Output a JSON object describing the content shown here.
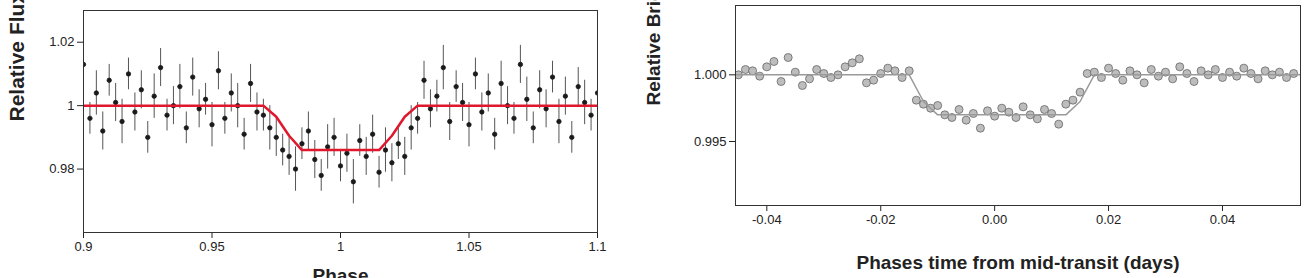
{
  "chart_data": [
    {
      "type": "scatter",
      "x_label": "Phase",
      "y_label": "Relative Flux",
      "xlim": [
        0.9,
        1.1
      ],
      "ylim": [
        0.96,
        1.03
      ],
      "xticks": [
        0.9,
        0.95,
        1,
        1.05,
        1.1
      ],
      "yticks": [
        0.98,
        1,
        1.02
      ],
      "series": [
        {
          "type": "scatter",
          "color": "#1a1a1a",
          "marker": "circle",
          "x": [
            0.9,
            0.9025,
            0.905,
            0.9075,
            0.91,
            0.9125,
            0.915,
            0.9175,
            0.92,
            0.9225,
            0.925,
            0.9275,
            0.93,
            0.9325,
            0.935,
            0.9375,
            0.94,
            0.9425,
            0.945,
            0.9475,
            0.95,
            0.9525,
            0.955,
            0.9575,
            0.96,
            0.9625,
            0.965,
            0.9675,
            0.97,
            0.9725,
            0.975,
            0.9775,
            0.98,
            0.9825,
            0.985,
            0.9875,
            0.99,
            0.9925,
            0.995,
            0.9975,
            1,
            1.0025,
            1.005,
            1.0075,
            1.01,
            1.0125,
            1.015,
            1.0175,
            1.02,
            1.0225,
            1.025,
            1.0275,
            1.03,
            1.0325,
            1.035,
            1.0375,
            1.04,
            1.0425,
            1.045,
            1.0475,
            1.05,
            1.0525,
            1.055,
            1.0575,
            1.06,
            1.0625,
            1.065,
            1.0675,
            1.07,
            1.0725,
            1.075,
            1.0775,
            1.08,
            1.0825,
            1.085,
            1.0875,
            1.09,
            1.0925,
            1.095,
            1.0975,
            1.1
          ],
          "values": [
            1.013,
            0.996,
            1.004,
            0.992,
            1.008,
            1.001,
            0.995,
            1.01,
            0.998,
            1.005,
            0.99,
            1.003,
            1.012,
            0.997,
            1.0,
            1.006,
            0.993,
            1.009,
            0.999,
            1.002,
            0.994,
            1.011,
            0.996,
            1.004,
            1.0,
            0.991,
            1.007,
            0.998,
            0.997,
            0.993,
            0.99,
            0.986,
            0.984,
            0.98,
            0.988,
            0.992,
            0.983,
            0.978,
            0.987,
            0.99,
            0.981,
            0.985,
            0.976,
            0.989,
            0.984,
            0.991,
            0.979,
            0.986,
            0.982,
            0.988,
            0.984,
            0.993,
            0.996,
            1.008,
            0.999,
            1.003,
            1.012,
            0.995,
            1.006,
            1.001,
            0.994,
            1.01,
            0.998,
            1.004,
            0.991,
            1.007,
            1.0,
            0.996,
            1.013,
            1.002,
            0.993,
            1.005,
            0.999,
            1.009,
            0.995,
            1.003,
            0.99,
            1.006,
            1.001,
            0.997,
            1.004
          ],
          "errors": [
            0.006,
            0.005,
            0.007,
            0.006,
            0.005,
            0.006,
            0.007,
            0.005,
            0.006,
            0.006,
            0.005,
            0.007,
            0.006,
            0.005,
            0.006,
            0.007,
            0.005,
            0.006,
            0.006,
            0.005,
            0.007,
            0.006,
            0.005,
            0.006,
            0.007,
            0.005,
            0.006,
            0.006,
            0.005,
            0.007,
            0.006,
            0.005,
            0.006,
            0.007,
            0.005,
            0.006,
            0.006,
            0.005,
            0.007,
            0.006,
            0.005,
            0.006,
            0.007,
            0.005,
            0.006,
            0.006,
            0.005,
            0.007,
            0.006,
            0.005,
            0.006,
            0.007,
            0.005,
            0.006,
            0.006,
            0.005,
            0.007,
            0.006,
            0.005,
            0.006,
            0.007,
            0.005,
            0.006,
            0.006,
            0.005,
            0.007,
            0.006,
            0.005,
            0.006,
            0.007,
            0.005,
            0.006,
            0.006,
            0.005,
            0.007,
            0.006,
            0.005,
            0.006,
            0.007,
            0.005,
            0.006
          ]
        },
        {
          "type": "line",
          "color": "#e0182d",
          "line_style": "solid",
          "x": [
            0.9,
            0.97,
            0.975,
            0.98,
            0.985,
            1.015,
            1.02,
            1.025,
            1.03,
            1.1
          ],
          "values": [
            1,
            1,
            0.9965,
            0.9905,
            0.986,
            0.986,
            0.9905,
            0.9965,
            1,
            1
          ]
        }
      ]
    },
    {
      "type": "scatter",
      "x_label": "Phases time from mid-transit (days)",
      "y_label": "Relative Brightness",
      "xlim": [
        -0.0455,
        0.0537
      ],
      "ylim": [
        0.9902,
        1.0052
      ],
      "xticks": [
        -0.04,
        -0.02,
        {
          "value": 0,
          "label": "0.00"
        },
        0.02,
        0.04
      ],
      "yticks": [
        0.995,
        {
          "value": 1,
          "label": "1.000"
        }
      ],
      "series": [
        {
          "type": "scatter",
          "color": "#bdbdbd",
          "marker": "circle",
          "x": [
            -0.045,
            -0.04375,
            -0.0425,
            -0.04125,
            -0.04,
            -0.03875,
            -0.0375,
            -0.03625,
            -0.035,
            -0.03375,
            -0.0325,
            -0.03125,
            -0.03,
            -0.02875,
            -0.0275,
            -0.02625,
            -0.025,
            -0.02375,
            -0.0225,
            -0.02125,
            -0.02,
            -0.01875,
            -0.0175,
            -0.01625,
            -0.015,
            -0.01375,
            -0.0125,
            -0.01125,
            -0.01,
            -0.00875,
            -0.0075,
            -0.00625,
            -0.005,
            -0.00375,
            -0.0025,
            -0.00125,
            0,
            0.00125,
            0.0025,
            0.00375,
            0.005,
            0.00625,
            0.0075,
            0.00875,
            0.01,
            0.01125,
            0.0125,
            0.01375,
            0.015,
            0.01625,
            0.0175,
            0.01875,
            0.02,
            0.02125,
            0.0225,
            0.02375,
            0.025,
            0.02625,
            0.0275,
            0.02875,
            0.03,
            0.03125,
            0.0325,
            0.03375,
            0.035,
            0.03625,
            0.0375,
            0.03875,
            0.04,
            0.04125,
            0.0425,
            0.04375,
            0.045,
            0.04625,
            0.0475,
            0.04875,
            0.05,
            0.05125,
            0.0525
          ],
          "values": [
            1.0,
            1.0004,
            1.0003,
            0.9999,
            1.0006,
            1.001,
            0.9995,
            1.0013,
            1.0002,
            0.9992,
            0.9997,
            1.0004,
            1.0001,
            0.9998,
            1.0,
            1.0006,
            1.0009,
            1.0012,
            0.9994,
            0.9996,
            1.0001,
            1.0005,
            1.0003,
            0.9998,
            1.0003,
            0.9981,
            0.9978,
            0.9975,
            0.9977,
            0.997,
            0.9968,
            0.9974,
            0.9966,
            0.9971,
            0.996,
            0.9973,
            0.9969,
            0.9975,
            0.9972,
            0.9968,
            0.9976,
            0.997,
            0.9967,
            0.9974,
            0.9971,
            0.9963,
            0.9978,
            0.9981,
            0.9987,
            1.0001,
            1.0002,
            0.9998,
            1.0005,
            1.0001,
            0.9996,
            1.0003,
            1.0,
            0.9994,
            1.0004,
            0.9999,
            1.0002,
            0.9997,
            1.0006,
            1.0001,
            0.9995,
            1.0003,
            1.0,
            1.0004,
            0.9998,
            1.0002,
            0.9999,
            1.0005,
            1.0001,
            0.9997,
            1.0003,
            1.0,
            1.0002,
            0.9998,
            1.0001
          ]
        },
        {
          "type": "line",
          "color": "#9a9a9a",
          "line_style": "solid",
          "x": [
            -0.0455,
            -0.015,
            -0.0125,
            -0.01,
            0.0125,
            0.015,
            0.0175,
            0.0537
          ],
          "values": [
            1,
            1,
            0.998,
            0.997,
            0.997,
            0.998,
            1,
            1
          ]
        }
      ]
    }
  ]
}
